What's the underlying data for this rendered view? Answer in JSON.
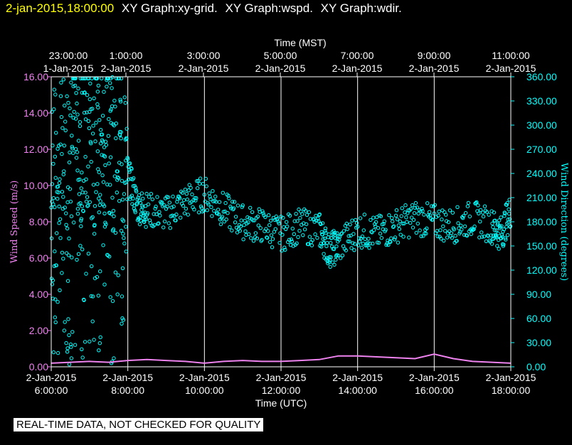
{
  "header": {
    "timestamp": "2-jan-2015,18:00:00",
    "graphs": [
      "XY Graph:xy-grid.",
      "XY Graph:wspd.",
      "XY Graph:wdir."
    ]
  },
  "footer": {
    "notice": "REAL-TIME DATA, NOT CHECKED FOR QUALITY"
  },
  "colors": {
    "wspd": "#ee82ee",
    "wdir": "#00ffff",
    "grid": "#ffffff",
    "axis_left": "#ee82ee",
    "axis_right": "#00ffff"
  },
  "chart_data": {
    "type": "scatter",
    "top_axis": {
      "label": "Time (MST)",
      "ticks": [
        [
          "23:00:00",
          "1-Jan-2015"
        ],
        [
          "1:00:00",
          "2-Jan-2015"
        ],
        [
          "3:00:00",
          "2-Jan-2015"
        ],
        [
          "5:00:00",
          "2-Jan-2015"
        ],
        [
          "7:00:00",
          "2-Jan-2015"
        ],
        [
          "9:00:00",
          "2-Jan-2015"
        ],
        [
          "11:00:00",
          "2-Jan-2015"
        ]
      ]
    },
    "bottom_axis": {
      "label": "Time (UTC)",
      "ticks": [
        [
          "2-Jan-2015",
          "6:00:00"
        ],
        [
          "2-Jan-2015",
          "8:00:00"
        ],
        [
          "2-Jan-2015",
          "10:00:00"
        ],
        [
          "2-Jan-2015",
          "12:00:00"
        ],
        [
          "2-Jan-2015",
          "14:00:00"
        ],
        [
          "2-Jan-2015",
          "16:00:00"
        ],
        [
          "2-Jan-2015",
          "18:00:00"
        ]
      ],
      "range_utc_hours": [
        6,
        18
      ]
    },
    "left_axis": {
      "label": "Wind Speed (m/s)",
      "ticks": [
        "0.00",
        "2.00",
        "4.00",
        "6.00",
        "8.00",
        "10.00",
        "12.00",
        "14.00",
        "16.00"
      ],
      "range": [
        0,
        16
      ]
    },
    "right_axis": {
      "label": "Wind Direction (degrees)",
      "ticks": [
        "0.00",
        "30.00",
        "60.00",
        "90.00",
        "120.00",
        "150.00",
        "180.00",
        "210.00",
        "240.00",
        "270.00",
        "300.00",
        "330.00",
        "360.00"
      ],
      "range": [
        0,
        360
      ]
    },
    "series": [
      {
        "name": "wspd",
        "axis": "left",
        "style": "line",
        "points": [
          [
            6.0,
            0.2
          ],
          [
            6.5,
            0.25
          ],
          [
            7.0,
            0.3
          ],
          [
            7.5,
            0.25
          ],
          [
            8.0,
            0.35
          ],
          [
            8.5,
            0.4
          ],
          [
            9.0,
            0.35
          ],
          [
            9.5,
            0.3
          ],
          [
            10.0,
            0.2
          ],
          [
            10.5,
            0.3
          ],
          [
            11.0,
            0.35
          ],
          [
            11.5,
            0.3
          ],
          [
            12.0,
            0.3
          ],
          [
            12.5,
            0.35
          ],
          [
            13.0,
            0.4
          ],
          [
            13.5,
            0.6
          ],
          [
            14.0,
            0.6
          ],
          [
            14.5,
            0.55
          ],
          [
            15.0,
            0.5
          ],
          [
            15.5,
            0.45
          ],
          [
            16.0,
            0.7
          ],
          [
            16.5,
            0.45
          ],
          [
            17.0,
            0.3
          ],
          [
            17.5,
            0.25
          ],
          [
            18.0,
            0.2
          ]
        ]
      },
      {
        "name": "wdir",
        "axis": "right",
        "style": "scatter",
        "points": [
          [
            6.0,
            200
          ],
          [
            6.25,
            250
          ],
          [
            6.5,
            260
          ],
          [
            6.75,
            280
          ],
          [
            7.0,
            290
          ],
          [
            7.25,
            300
          ],
          [
            7.5,
            290
          ],
          [
            7.75,
            280
          ],
          [
            8.0,
            240
          ],
          [
            8.25,
            200
          ],
          [
            8.5,
            195
          ],
          [
            9.0,
            190
          ],
          [
            9.5,
            205
          ],
          [
            10.0,
            215
          ],
          [
            10.5,
            195
          ],
          [
            11.0,
            180
          ],
          [
            11.5,
            175
          ],
          [
            12.0,
            165
          ],
          [
            12.5,
            175
          ],
          [
            13.0,
            170
          ],
          [
            13.25,
            145
          ],
          [
            13.5,
            150
          ],
          [
            14.0,
            170
          ],
          [
            14.5,
            165
          ],
          [
            15.0,
            175
          ],
          [
            15.5,
            185
          ],
          [
            16.0,
            180
          ],
          [
            16.5,
            175
          ],
          [
            17.0,
            185
          ],
          [
            17.5,
            175
          ],
          [
            17.75,
            165
          ],
          [
            18.0,
            195
          ]
        ]
      }
    ],
    "grid": "vertical"
  }
}
